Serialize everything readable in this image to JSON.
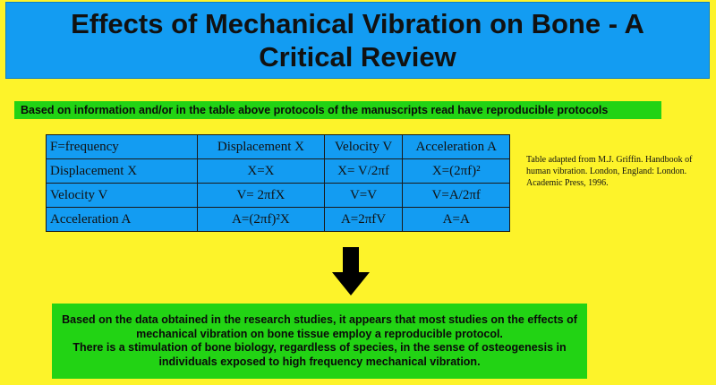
{
  "title": "Effects of Mechanical Vibration on Bone - A Critical Review",
  "banner_text": "Based on information and/or in the table above protocols of the manuscripts read have reproducible protocols",
  "table": {
    "rows": [
      [
        "F=frequency",
        "Displacement X",
        "Velocity V",
        "Acceleration A"
      ],
      [
        "Displacement X",
        "X=X",
        "X= V/2πf",
        "X=(2πf)²"
      ],
      [
        "Velocity V",
        "V= 2πfX",
        "V=V",
        "V=A/2πf"
      ],
      [
        "Acceleration A",
        "A=(2πf)²X",
        "A=2πfV",
        "A=A"
      ]
    ]
  },
  "citation": "Table adapted from M.J. Griffin. Handbook of human vibration. London, England: London. Academic Press, 1996.",
  "arrow_icon": "down-arrow-icon",
  "conclusion": {
    "paragraph_1": "Based on the data obtained in the research studies, it appears that most studies on the effects of mechanical vibration on bone tissue employ a reproducible protocol.",
    "paragraph_2": "There is a stimulation of bone biology, regardless of species, in the sense of osteogenesis in individuals exposed to high frequency mechanical vibration."
  },
  "colors": {
    "background": "#fdf32a",
    "title_box": "#139cf2",
    "table": "#139cf2",
    "green_box": "#22d314"
  }
}
